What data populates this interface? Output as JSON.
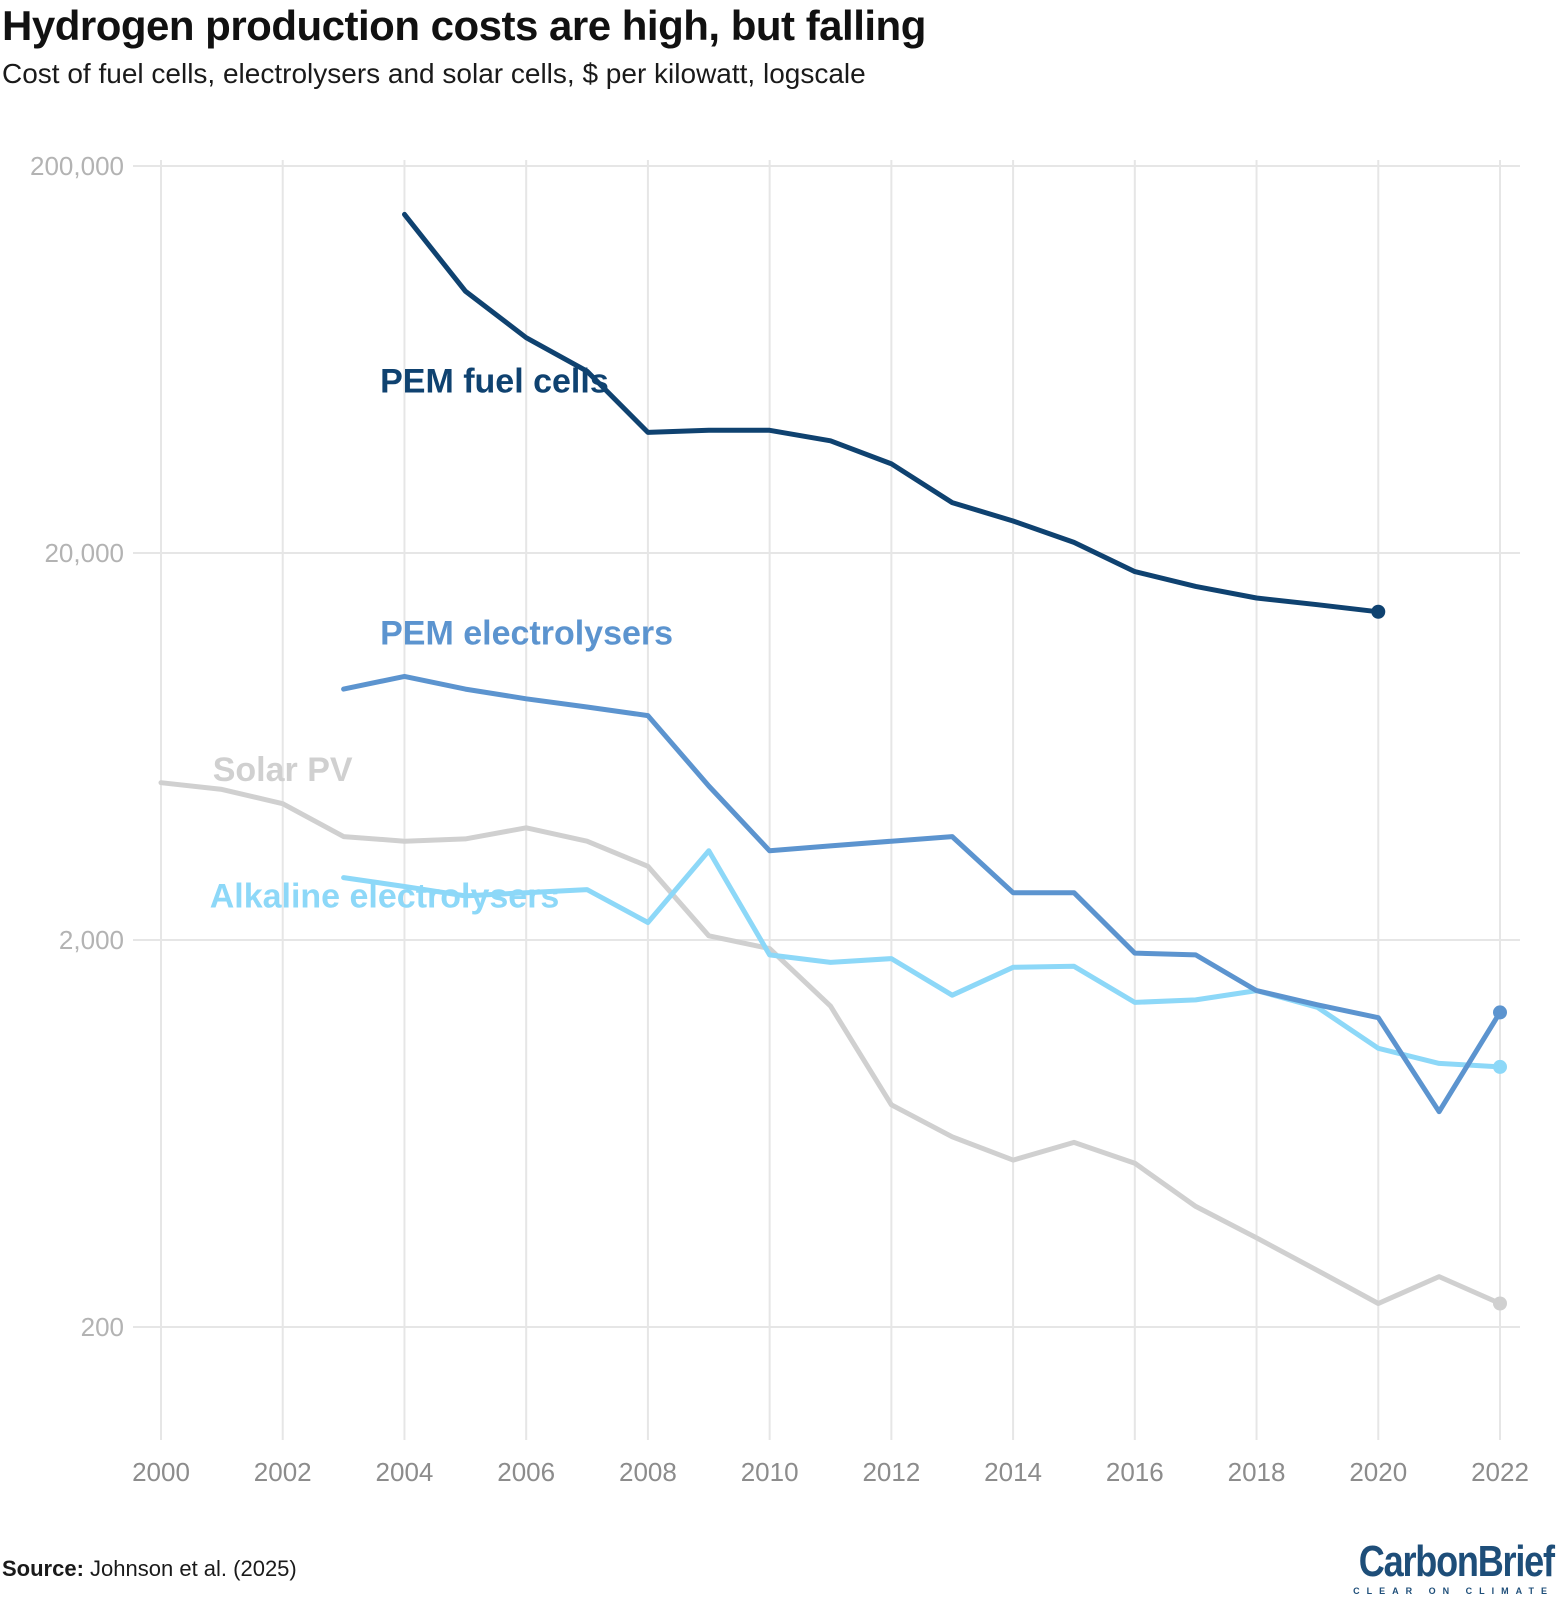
{
  "title": "Hydrogen production costs are high, but falling",
  "subtitle": "Cost of fuel cells, electrolysers and solar cells, $ per kilowatt, logscale",
  "source": {
    "label": "Source:",
    "text": "Johnson et al. (2025)"
  },
  "logo": {
    "name": "CarbonBrief",
    "tagline": "CLEAR ON CLIMATE"
  },
  "chart_data": {
    "type": "line",
    "yscale": "log",
    "ylim": [
      200,
      200000
    ],
    "xlim": [
      2000,
      2022
    ],
    "y_ticks": [
      {
        "value": 200,
        "label": "200"
      },
      {
        "value": 2000,
        "label": "2,000"
      },
      {
        "value": 20000,
        "label": "20,000"
      },
      {
        "value": 200000,
        "label": "200,000"
      }
    ],
    "x_ticks": [
      2000,
      2002,
      2004,
      2006,
      2008,
      2010,
      2012,
      2014,
      2016,
      2018,
      2020,
      2022
    ],
    "grid": true,
    "series": [
      {
        "name": "Solar PV",
        "color": "#d0d0d0",
        "x": [
          2000,
          2001,
          2002,
          2003,
          2004,
          2005,
          2006,
          2007,
          2008,
          2009,
          2010,
          2011,
          2012,
          2013,
          2014,
          2015,
          2016,
          2017,
          2018,
          2019,
          2020,
          2021,
          2022
        ],
        "values": [
          5100,
          4900,
          4500,
          3700,
          3600,
          3650,
          3900,
          3600,
          3100,
          2050,
          1900,
          1350,
          750,
          620,
          540,
          600,
          530,
          410,
          340,
          280,
          230,
          270,
          230
        ]
      },
      {
        "name": "Alkaline electrolysers",
        "color": "#8dd8f8",
        "x": [
          2003,
          2004,
          2005,
          2006,
          2007,
          2008,
          2009,
          2010,
          2011,
          2012,
          2013,
          2014,
          2015,
          2016,
          2017,
          2018,
          2019,
          2020,
          2021,
          2022
        ],
        "values": [
          2900,
          2750,
          2600,
          2650,
          2700,
          2220,
          3400,
          1830,
          1750,
          1790,
          1440,
          1700,
          1710,
          1380,
          1400,
          1480,
          1340,
          1050,
          960,
          940
        ]
      },
      {
        "name": "PEM electrolysers",
        "color": "#5c94cf",
        "x": [
          2003,
          2004,
          2005,
          2006,
          2007,
          2008,
          2009,
          2010,
          2011,
          2012,
          2013,
          2014,
          2015,
          2016,
          2017,
          2018,
          2019,
          2020,
          2021,
          2022
        ],
        "values": [
          8900,
          9600,
          8900,
          8400,
          8000,
          7600,
          5000,
          3400,
          3500,
          3600,
          3700,
          2650,
          2650,
          1850,
          1830,
          1480,
          1360,
          1260,
          720,
          1300
        ]
      },
      {
        "name": "PEM fuel cells",
        "color": "#0f4270",
        "x": [
          2004,
          2005,
          2006,
          2007,
          2008,
          2009,
          2010,
          2011,
          2012,
          2013,
          2014,
          2015,
          2016,
          2017,
          2018,
          2019,
          2020
        ],
        "values": [
          150000,
          95000,
          72000,
          59000,
          41000,
          41500,
          41500,
          39000,
          34000,
          27000,
          24200,
          21300,
          17900,
          16400,
          15300,
          14700,
          14100
        ]
      }
    ],
    "annotations": [
      {
        "series": "PEM fuel cells",
        "text": "PEM fuel cells",
        "at": [
          2003.6,
          52000
        ]
      },
      {
        "series": "PEM electrolysers",
        "text": "PEM electrolysers",
        "at": [
          2003.6,
          11600
        ]
      },
      {
        "series": "Solar PV",
        "text": "Solar PV",
        "at": [
          2000.85,
          5150
        ]
      },
      {
        "series": "Alkaline electrolysers",
        "text": "Alkaline electrolysers",
        "at": [
          2000.8,
          2430
        ]
      }
    ]
  }
}
